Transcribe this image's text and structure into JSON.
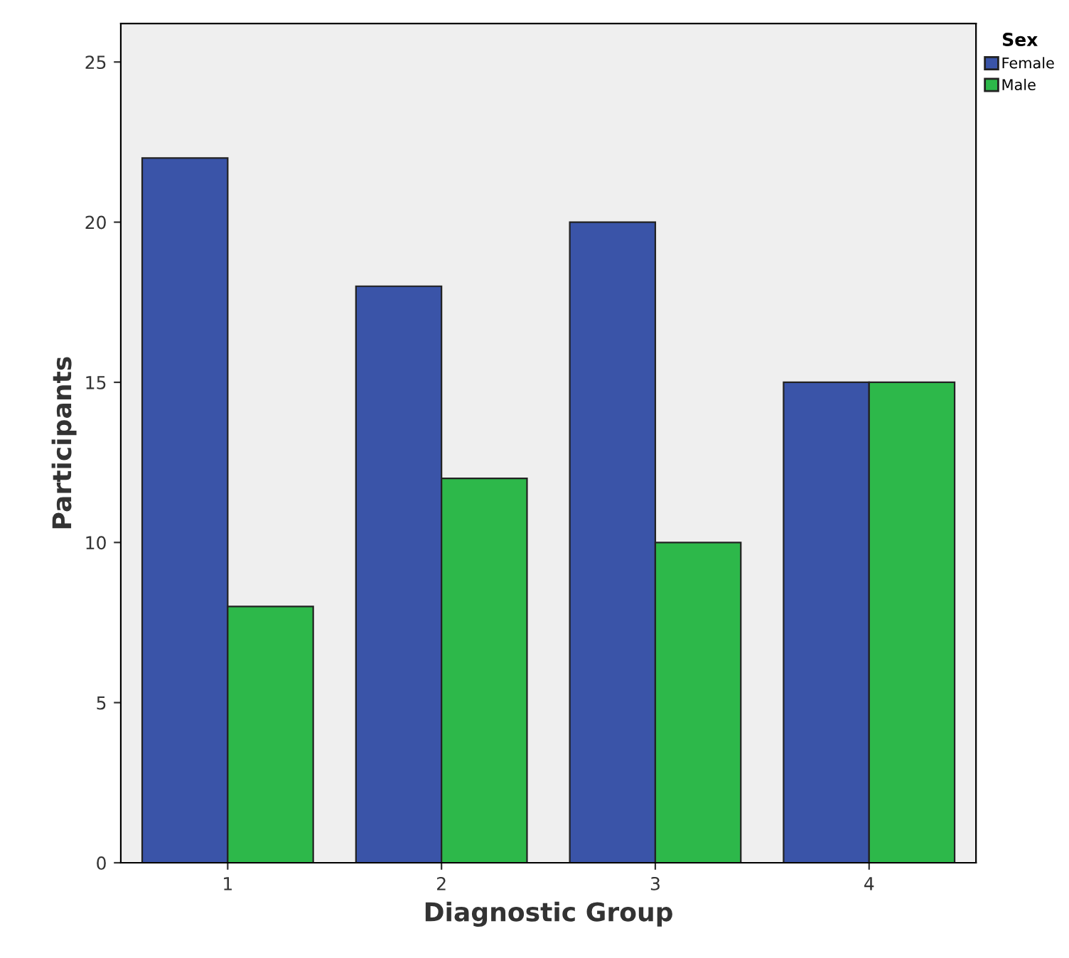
{
  "chart_data": {
    "type": "bar",
    "xlabel": "Diagnostic Group",
    "ylabel": "Participants",
    "legend_title": "Sex",
    "categories": [
      "1",
      "2",
      "3",
      "4"
    ],
    "series": [
      {
        "name": "Female",
        "color": "#3a54a8",
        "values": [
          22,
          18,
          20,
          15
        ]
      },
      {
        "name": "Male",
        "color": "#2db84a",
        "values": [
          8,
          12,
          10,
          15
        ]
      }
    ],
    "ylim": [
      0,
      26.2
    ],
    "yticks": [
      0,
      5,
      10,
      15,
      20,
      25
    ],
    "grid": false,
    "legend": "top right"
  }
}
